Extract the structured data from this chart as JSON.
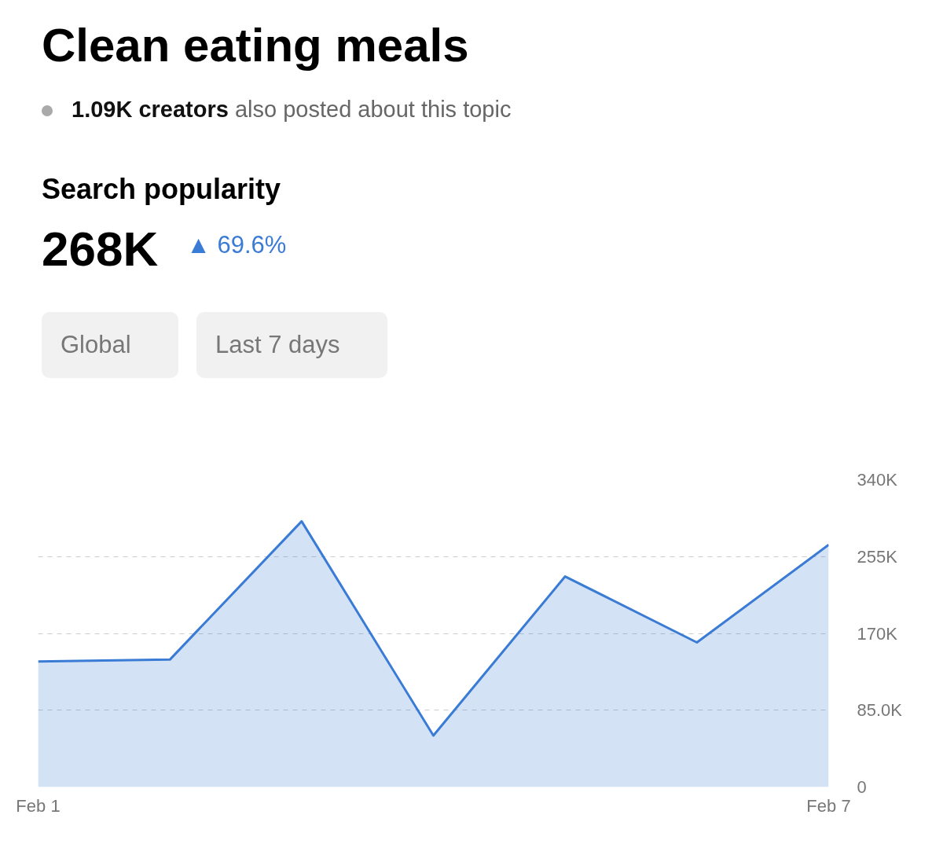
{
  "chart_data": {
    "type": "area",
    "title": "Clean eating meals",
    "subtitle": "1.09K creators also posted about this topic",
    "annotations": [
      "Search popularity",
      "268K",
      "▲ 69.6%",
      "Global",
      "Last 7 days"
    ],
    "categories": [
      "Feb 1",
      null,
      null,
      null,
      null,
      null,
      "Feb 7"
    ],
    "series": [
      {
        "color": "#3a7bd5",
        "values": [
          139000,
          141000,
          294000,
          57000,
          233000,
          160000,
          268000
        ]
      }
    ],
    "ylim": [
      0,
      340000
    ],
    "yticks": [
      {
        "value": 0,
        "label": "0"
      },
      {
        "value": 85000,
        "label": "85.0K"
      },
      {
        "value": 170000,
        "label": "170K"
      },
      {
        "value": 255000,
        "label": "255K"
      },
      {
        "value": 340000,
        "label": "340K"
      }
    ],
    "grid": "y",
    "line_style": "solid"
  }
}
